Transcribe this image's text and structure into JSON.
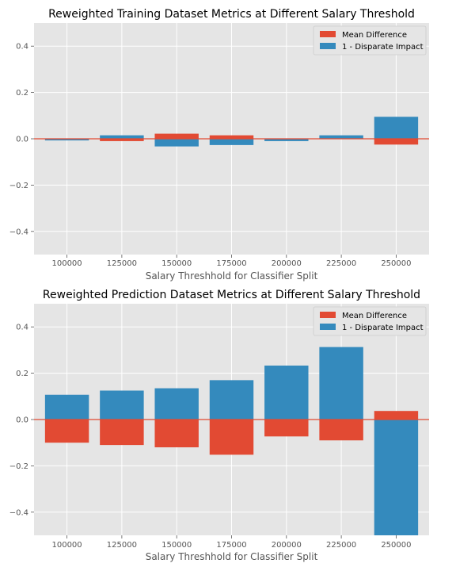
{
  "chart_data": [
    {
      "type": "bar",
      "title": "Reweighted Training Dataset Metrics at Different Salary Threshold",
      "xlabel": "Salary Threshhold for Classifier Split",
      "ylabel": "",
      "ylim": [
        -0.5,
        0.5
      ],
      "yticks": [
        -0.4,
        -0.2,
        0.0,
        0.2,
        0.4
      ],
      "ytick_labels": [
        "−0.4",
        "−0.2",
        "0.0",
        "0.2",
        "0.4"
      ],
      "categories": [
        "100000",
        "125000",
        "150000",
        "175000",
        "200000",
        "225000",
        "250000"
      ],
      "series": [
        {
          "name": "Mean Difference",
          "color": "#E24A33",
          "values": [
            -0.003,
            -0.01,
            0.022,
            0.015,
            -0.003,
            0.003,
            -0.025
          ]
        },
        {
          "name": "1 - Disparate Impact",
          "color": "#348ABD",
          "values": [
            -0.007,
            0.015,
            -0.033,
            -0.027,
            -0.01,
            0.015,
            0.095
          ]
        }
      ],
      "grid": true,
      "legend_position": "top-right"
    },
    {
      "type": "bar",
      "title": "Reweighted Prediction Dataset Metrics at Different Salary Threshold",
      "xlabel": "Salary Threshhold for Classifier Split",
      "ylabel": "",
      "ylim": [
        -0.5,
        0.5
      ],
      "yticks": [
        -0.4,
        -0.2,
        0.0,
        0.2,
        0.4
      ],
      "ytick_labels": [
        "−0.4",
        "−0.2",
        "0.0",
        "0.2",
        "0.4"
      ],
      "categories": [
        "100000",
        "125000",
        "150000",
        "175000",
        "200000",
        "225000",
        "250000"
      ],
      "series": [
        {
          "name": "Mean Difference",
          "color": "#E24A33",
          "values": [
            -0.1,
            -0.11,
            -0.12,
            -0.152,
            -0.073,
            -0.09,
            0.037
          ]
        },
        {
          "name": "1 - Disparate Impact",
          "color": "#348ABD",
          "values": [
            0.107,
            0.125,
            0.135,
            0.17,
            0.233,
            0.313,
            -0.5
          ]
        }
      ],
      "grid": true,
      "legend_position": "top-right"
    }
  ]
}
